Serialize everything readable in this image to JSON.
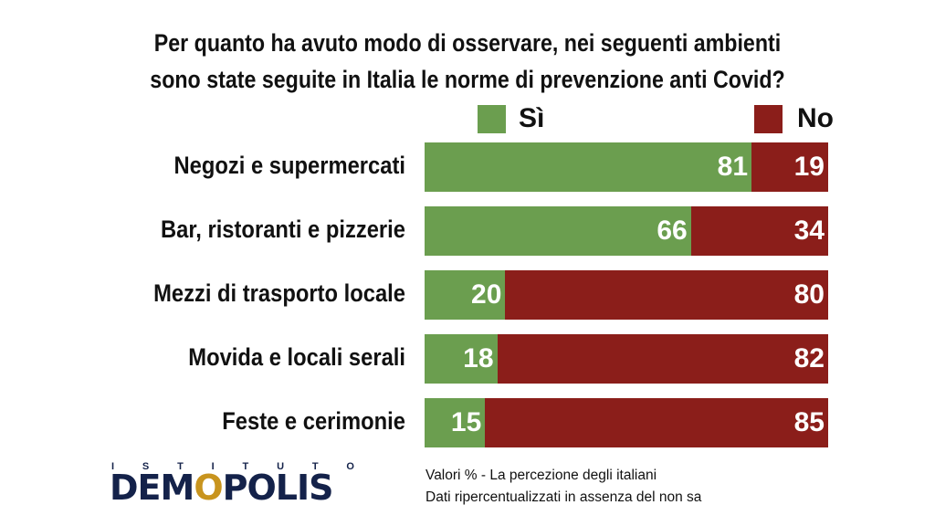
{
  "chart_data": {
    "type": "bar",
    "orientation": "horizontal",
    "stacked": true,
    "title": "Per quanto ha avuto modo di osservare, nei seguenti ambienti sono state seguite in Italia le norme di prevenzione anti Covid?",
    "title_lines": [
      "Per quanto ha avuto modo di osservare, nei seguenti ambienti",
      "sono state seguite in Italia le norme di prevenzione anti Covid?"
    ],
    "categories": [
      "Negozi e supermercati",
      "Bar, ristoranti e pizzerie",
      "Mezzi di trasporto locale",
      "Movida e locali serali",
      "Feste e cerimonie"
    ],
    "series": [
      {
        "name": "Sì",
        "color": "#6b9e4f",
        "values": [
          81,
          66,
          20,
          18,
          15
        ]
      },
      {
        "name": "No",
        "color": "#8b1e1a",
        "values": [
          19,
          34,
          80,
          82,
          85
        ]
      }
    ],
    "xlim": [
      0,
      100
    ],
    "grid": false,
    "legend_position": "top"
  },
  "logo": {
    "top_text": "ISTITUTO",
    "main_prefix": "DEM",
    "main_o": "O",
    "main_suffix": "POLIS"
  },
  "notes": [
    "Valori % - La percezione degli italiani",
    "Dati ripercentualizzati in assenza del non sa"
  ]
}
